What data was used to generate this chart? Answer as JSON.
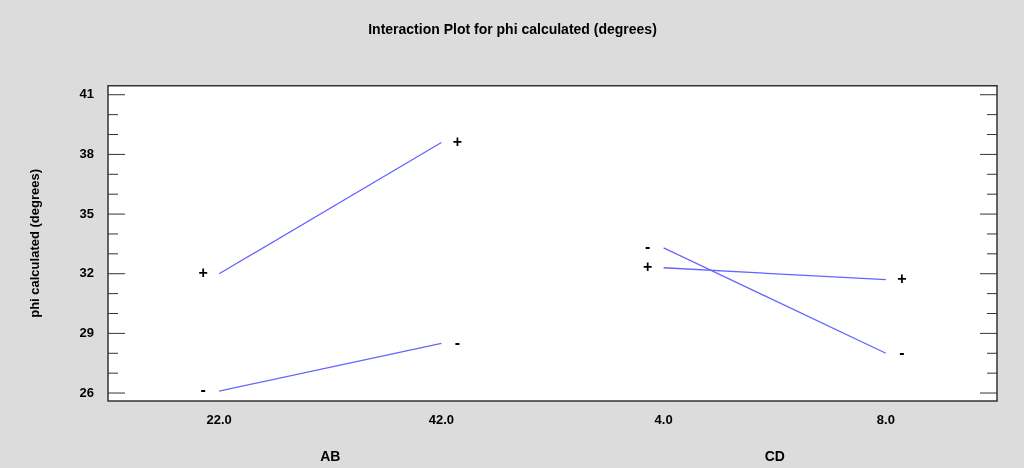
{
  "chart_data": {
    "type": "line",
    "title": "Interaction Plot for phi calculated (degrees)",
    "ylabel": "phi calculated (degrees)",
    "categories": [
      "22.0",
      "42.0",
      "4.0",
      "8.0"
    ],
    "series": [
      {
        "color": "#6464ff",
        "values": [
          32.0,
          38.6,
          null,
          null
        ]
      },
      {
        "color": "#6464ff",
        "values": [
          26.1,
          28.5,
          null,
          null
        ]
      },
      {
        "color": "#6464ff",
        "values": [
          null,
          null,
          33.3,
          28.0
        ]
      },
      {
        "color": "#6464ff",
        "values": [
          null,
          null,
          32.3,
          31.7
        ]
      }
    ],
    "ylim": [
      25.6,
      41.45
    ],
    "yticks": [
      26,
      {
        "value": 27,
        "label": null
      },
      {
        "value": 28,
        "label": null
      },
      29,
      {
        "value": 30,
        "label": null
      },
      {
        "value": 31,
        "label": null
      },
      32,
      {
        "value": 33,
        "label": null
      },
      {
        "value": 34,
        "label": null
      },
      35,
      {
        "value": 36,
        "label": null
      },
      {
        "value": 37,
        "label": null
      },
      38,
      {
        "value": 39,
        "label": null
      },
      {
        "value": 40,
        "label": null
      },
      41
    ],
    "annotations": [
      {
        "text": "+",
        "x": "22.0",
        "y": 32.0
      },
      {
        "text": "+",
        "x": "42.0",
        "y": 38.6
      },
      {
        "text": "-",
        "x": "22.0",
        "y": 26.1
      },
      {
        "text": "-",
        "x": "42.0",
        "y": 28.5
      },
      {
        "text": "-",
        "x": "4.0",
        "y": 33.3
      },
      {
        "text": "-",
        "x": "8.0",
        "y": 28.0
      },
      {
        "text": "+",
        "x": "4.0",
        "y": 32.3
      },
      {
        "text": "+",
        "x": "8.0",
        "y": 31.7
      },
      "AB",
      "CD"
    ],
    "grid": false,
    "legend": false,
    "marker": "none",
    "line_style": "solid"
  }
}
